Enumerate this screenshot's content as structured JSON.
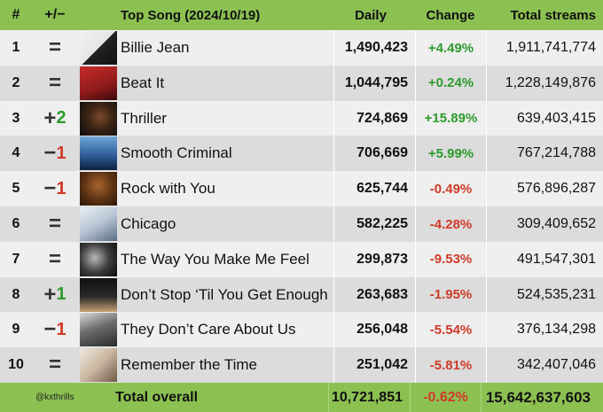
{
  "header": {
    "rank": "#",
    "movement": "+/−",
    "title": "Top Song (2024/10/19)",
    "daily": "Daily",
    "change": "Change",
    "total": "Total streams"
  },
  "rows": [
    {
      "rank": "1",
      "sign": "=",
      "num": "",
      "dir": "eq",
      "title": "Billie Jean",
      "daily": "1,490,423",
      "change": "+4.49%",
      "change_dir": "pos",
      "total": "1,911,741,774",
      "art": "billie-jean-cover"
    },
    {
      "rank": "2",
      "sign": "=",
      "num": "",
      "dir": "eq",
      "title": "Beat It",
      "daily": "1,044,795",
      "change": "+0.24%",
      "change_dir": "pos",
      "total": "1,228,149,876",
      "art": "beat-it-cover"
    },
    {
      "rank": "3",
      "sign": "+",
      "num": "2",
      "dir": "pos",
      "title": "Thriller",
      "daily": "724,869",
      "change": "+15.89%",
      "change_dir": "pos",
      "total": "639,403,415",
      "art": "thriller-cover"
    },
    {
      "rank": "4",
      "sign": "−",
      "num": "1",
      "dir": "neg",
      "title": "Smooth Criminal",
      "daily": "706,669",
      "change": "+5.99%",
      "change_dir": "pos",
      "total": "767,214,788",
      "art": "smooth-criminal-cover"
    },
    {
      "rank": "5",
      "sign": "−",
      "num": "1",
      "dir": "neg",
      "title": "Rock with You",
      "daily": "625,744",
      "change": "-0.49%",
      "change_dir": "neg",
      "total": "576,896,287",
      "art": "rock-with-you-cover"
    },
    {
      "rank": "6",
      "sign": "=",
      "num": "",
      "dir": "eq",
      "title": "Chicago",
      "daily": "582,225",
      "change": "-4.28%",
      "change_dir": "neg",
      "total": "309,409,652",
      "art": "chicago-cover"
    },
    {
      "rank": "7",
      "sign": "=",
      "num": "",
      "dir": "eq",
      "title": "The Way You Make Me Feel",
      "daily": "299,873",
      "change": "-9.53%",
      "change_dir": "neg",
      "total": "491,547,301",
      "art": "the-way-you-make-me-feel-cover"
    },
    {
      "rank": "8",
      "sign": "+",
      "num": "1",
      "dir": "pos",
      "title": "Don’t Stop ‘Til You Get Enough",
      "daily": "263,683",
      "change": "-1.95%",
      "change_dir": "neg",
      "total": "524,535,231",
      "art": "dont-stop-cover"
    },
    {
      "rank": "9",
      "sign": "−",
      "num": "1",
      "dir": "neg",
      "title": "They Don’t Care About Us",
      "daily": "256,048",
      "change": "-5.54%",
      "change_dir": "neg",
      "total": "376,134,298",
      "art": "they-dont-care-cover"
    },
    {
      "rank": "10",
      "sign": "=",
      "num": "",
      "dir": "eq",
      "title": "Remember the Time",
      "daily": "251,042",
      "change": "-5.81%",
      "change_dir": "neg",
      "total": "342,407,046",
      "art": "remember-the-time-cover"
    }
  ],
  "footer": {
    "handle": "@kxthrills",
    "label": "Total overall",
    "daily": "10,721,851",
    "change": "-0.62%",
    "change_dir": "neg",
    "total": "15,642,637,603"
  },
  "colors": {
    "header_bg": "#8cc152",
    "positive": "#2e9a2e",
    "negative": "#d03a2a"
  }
}
